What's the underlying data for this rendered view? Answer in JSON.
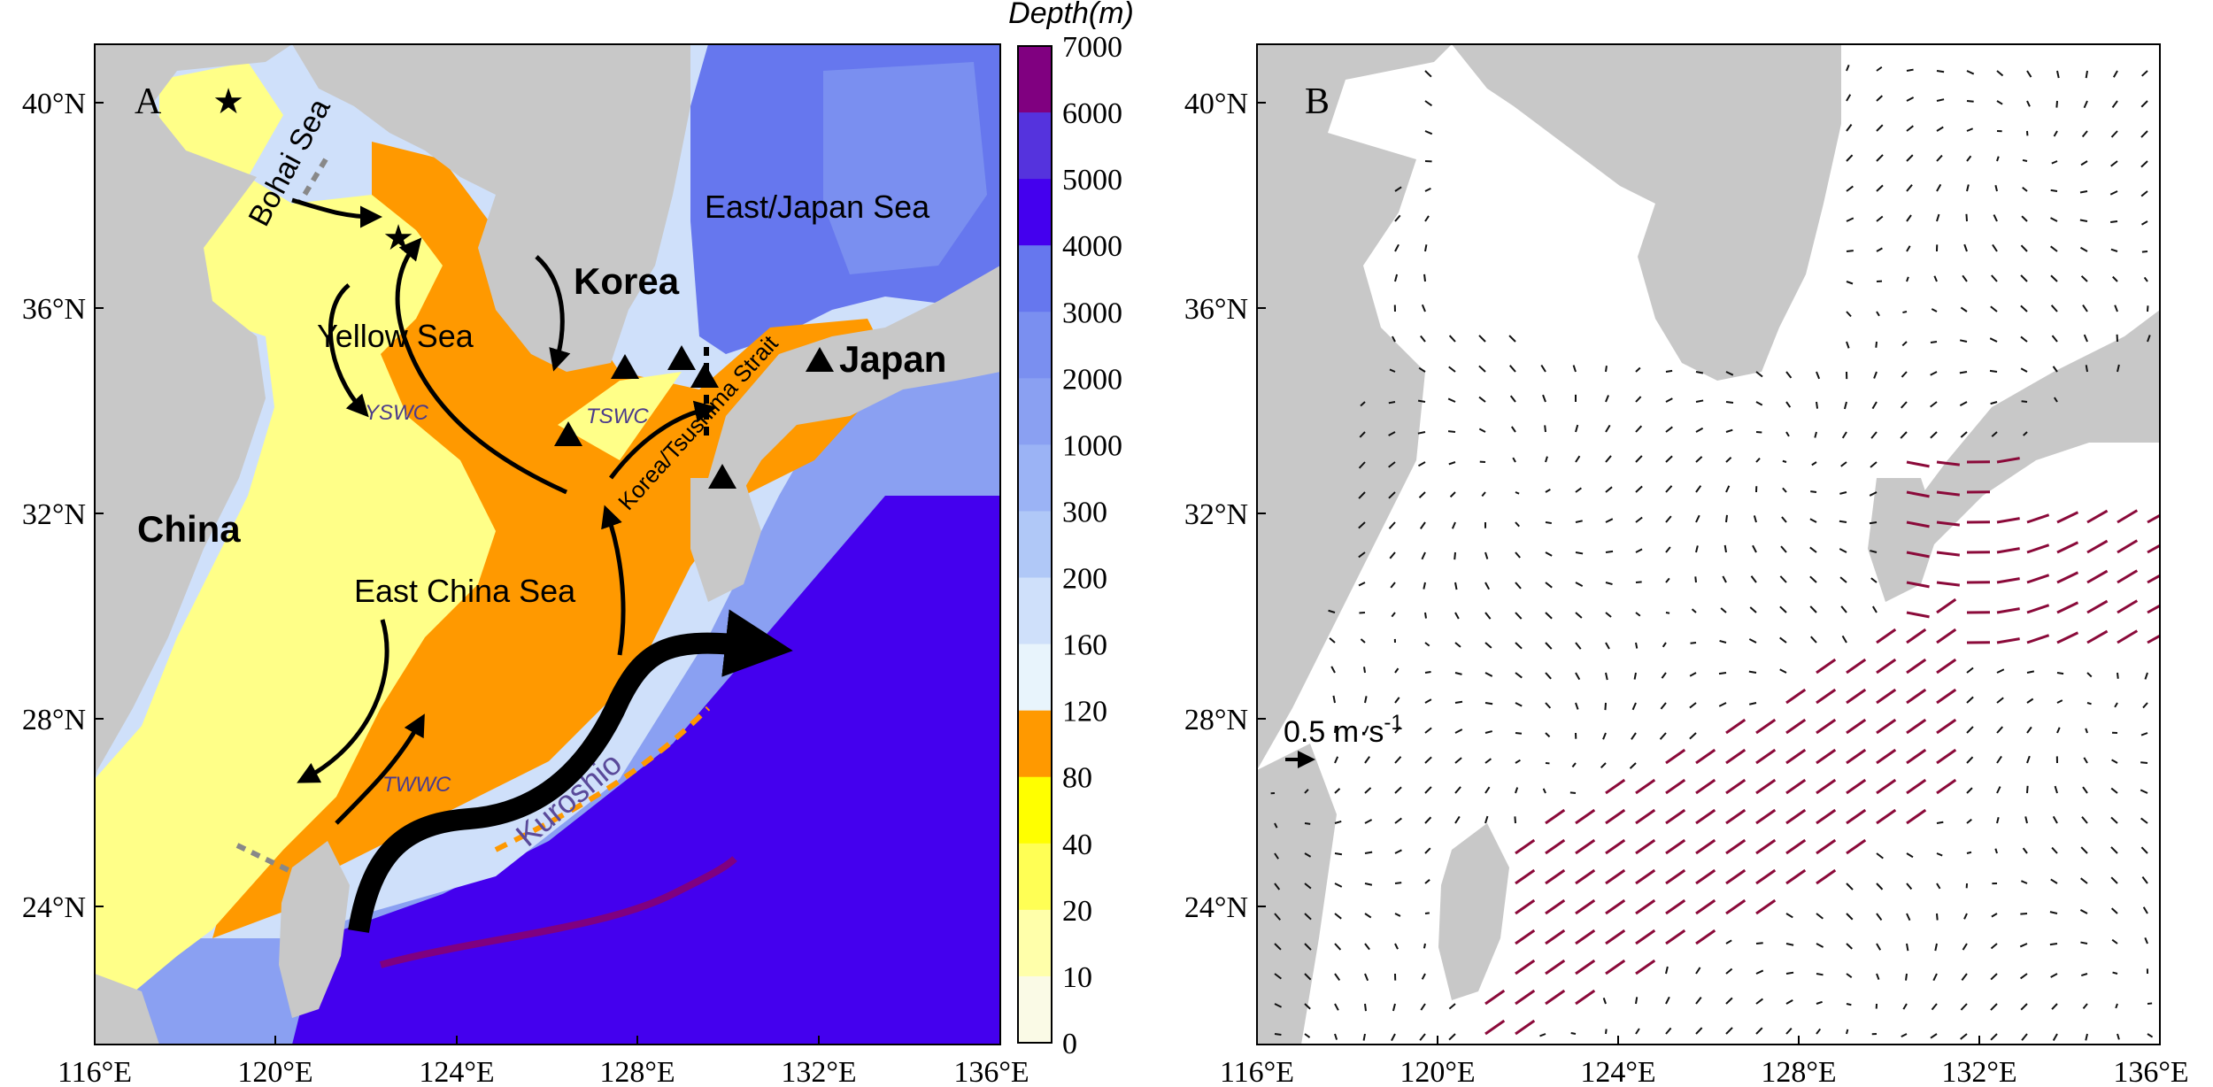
{
  "panelA": {
    "letter": "A",
    "lat_ticks": [
      "40°N",
      "36°N",
      "32°N",
      "28°N",
      "24°N"
    ],
    "lon_ticks": [
      "116°E",
      "120°E",
      "124°E",
      "128°E",
      "132°E",
      "136°E"
    ],
    "labels": {
      "bohai": "Bohai Sea",
      "yellow_sea": "Yellow Sea",
      "east_china_sea": "East China Sea",
      "east_japan_sea": "East/Japan Sea",
      "korea": "Korea",
      "japan": "Japan",
      "china": "China",
      "strait": "Korea/Tsushima Strait",
      "kuroshio": "Kuroshio",
      "yswc": "YSWC",
      "tswc": "TSWC",
      "twwc": "TWWC"
    },
    "colors": {
      "land": "#c8c8c8",
      "shallow": "#ffff88",
      "shelf_orange": "#ff9900",
      "deep": "#4400ee"
    }
  },
  "panelB": {
    "letter": "B",
    "lat_ticks": [
      "40°N",
      "36°N",
      "32°N",
      "28°N",
      "24°N"
    ],
    "lon_ticks": [
      "116°E",
      "120°E",
      "124°E",
      "128°E",
      "132°E",
      "136°E"
    ],
    "scale_label": "0.5 m·s",
    "scale_exp": "-1"
  },
  "colorbar": {
    "title": "Depth(m)",
    "ticks": [
      "7000",
      "6000",
      "5000",
      "4000",
      "3000",
      "2000",
      "1000",
      "300",
      "200",
      "160",
      "120",
      "80",
      "40",
      "20",
      "10",
      "0"
    ],
    "colors": [
      "#800080",
      "#5533dd",
      "#4400ee",
      "#6677ee",
      "#7a8ff0",
      "#8aa0f2",
      "#9bb3f5",
      "#b0c8f7",
      "#cfe0fa",
      "#e8f4fc",
      "#ff9900",
      "#ffff00",
      "#ffff55",
      "#ffffaa",
      "#fafae6"
    ]
  }
}
